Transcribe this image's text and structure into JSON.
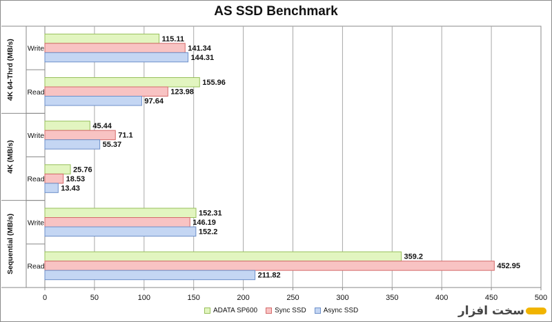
{
  "chart_data": {
    "type": "bar",
    "orientation": "horizontal",
    "title": "AS SSD Benchmark",
    "groups": [
      {
        "label": "4K 64-Thrd (MB/s)",
        "categories": [
          "Write",
          "Read"
        ]
      },
      {
        "label": "4K (MB/s)",
        "categories": [
          "Write",
          "Read"
        ]
      },
      {
        "label": "Sequential (MB/s)",
        "categories": [
          "Write",
          "Read"
        ]
      }
    ],
    "categories": [
      "4K 64-Thrd Write",
      "4K 64-Thrd Read",
      "4K Write",
      "4K Read",
      "Sequential Write",
      "Sequential Read"
    ],
    "series": [
      {
        "name": "ADATA SP600",
        "color": "#e2f5c0",
        "stroke": "#97bf5a",
        "values": [
          115.11,
          155.96,
          45.44,
          25.76,
          152.31,
          359.2
        ],
        "labels": [
          "115.11",
          "155.96",
          "45.44",
          "25.76",
          "152.31",
          "359.2"
        ]
      },
      {
        "name": "Sync SSD",
        "color": "#f8c3c3",
        "stroke": "#d46a6a",
        "values": [
          141.34,
          123.98,
          71.1,
          18.53,
          146.19,
          452.95
        ],
        "labels": [
          "141.34",
          "123.98",
          "71.1",
          "18.53",
          "146.19",
          "452.95"
        ]
      },
      {
        "name": "Async SSD",
        "color": "#c4d6f3",
        "stroke": "#6c8fc9",
        "values": [
          144.31,
          97.64,
          55.37,
          13.43,
          152.2,
          211.82
        ],
        "labels": [
          "144.31",
          "97.64",
          "55.37",
          "13.43",
          "152.2",
          "211.82"
        ]
      }
    ],
    "xlim": [
      0,
      500
    ],
    "xticks": [
      "0",
      "50",
      "100",
      "150",
      "200",
      "250",
      "300",
      "350",
      "400",
      "450",
      "500"
    ],
    "grid": true,
    "legend_position": "bottom"
  },
  "watermark": {
    "text": "سخت افزار",
    "color": "#f1b400"
  }
}
